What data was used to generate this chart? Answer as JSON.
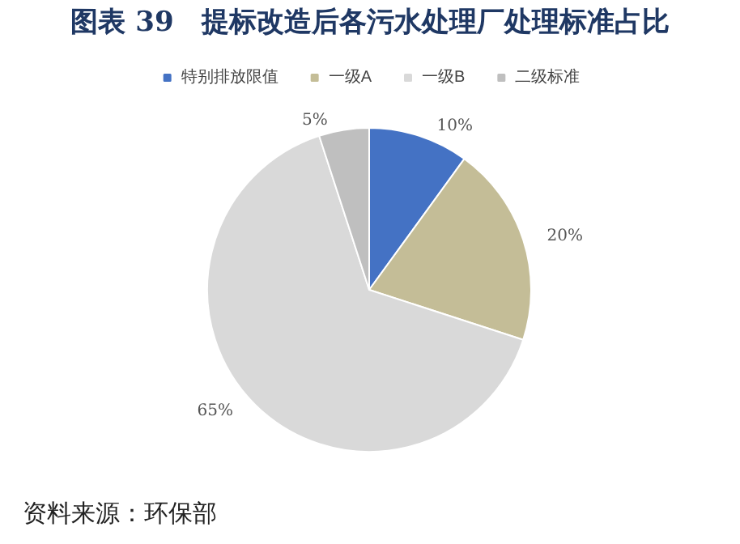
{
  "chart_data": {
    "type": "pie",
    "title": "图表 39　提标改造后各污水处理厂处理标准占比",
    "categories": [
      "特别排放限值",
      "一级A",
      "一级B",
      "二级标准"
    ],
    "values": [
      10,
      20,
      65,
      5
    ],
    "value_labels": [
      "10%",
      "20%",
      "65%",
      "5%"
    ],
    "colors": [
      "#4472c4",
      "#c4bd97",
      "#d9d9d9",
      "#bfbfbf"
    ],
    "legend": "top",
    "annotations": [
      "资料来源：环保部"
    ]
  }
}
